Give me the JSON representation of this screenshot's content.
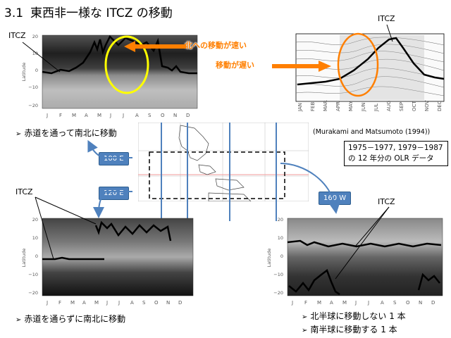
{
  "title": {
    "number": "3.1",
    "text": "東西非一様な ITCZ の移動"
  },
  "labels": {
    "itcz_top_left": "ITCZ",
    "itcz_right": "ITCZ",
    "itcz_bottom_left": "ITCZ",
    "itcz_bottom_right": "ITCZ"
  },
  "annotations": {
    "north_fast": "北への移動が速い",
    "move_slow": "移動が遅い"
  },
  "citation": "(Murakami and Matsumoto (1994))",
  "data_note": {
    "line1": "1975－1977, 1979－1987",
    "line2": "の 12 年分の OLR データ"
  },
  "bullets": {
    "top": "赤道を通って南北に移動",
    "bottom_left": "赤道を通らずに南北に移動",
    "bottom_right_1": "北半球に移動しない 1 本",
    "bottom_right_2": "南半球に移動する 1 本"
  },
  "tags": {
    "e100": "100 E",
    "e120": "120 E",
    "w160": "160 W"
  },
  "axis": {
    "ylabel": "Latitude",
    "yticks": [
      "20",
      "10",
      "0",
      "−10",
      "−20"
    ],
    "months": [
      "J",
      "F",
      "M",
      "A",
      "M",
      "J",
      "J",
      "A",
      "S",
      "O",
      "N",
      "D"
    ],
    "months_right": [
      "JAN",
      "FEB",
      "MAR",
      "APR",
      "MAY",
      "JUN",
      "JUL",
      "AUG",
      "SEP",
      "OCT",
      "NOV",
      "DEC"
    ]
  },
  "colors": {
    "accent_orange": "#ff7f00",
    "highlight_yellow": "#ffff00",
    "map_line_blue": "#4f81bd"
  }
}
